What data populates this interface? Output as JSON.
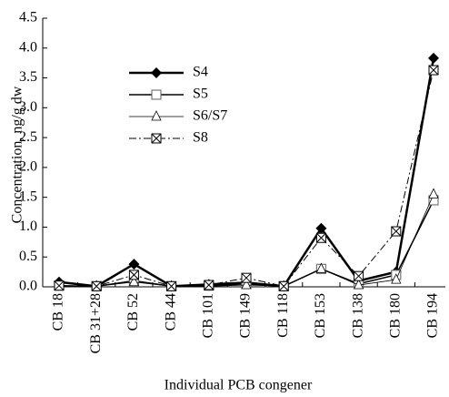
{
  "chart_data": {
    "type": "line",
    "x_label": "Individual PCB congener",
    "y_label": "Concentration, ng/g dw",
    "categories": [
      "CB 18",
      "CB 31+28",
      "CB 52",
      "CB 44",
      "CB 101",
      "CB 149",
      "CB 118",
      "CB 153",
      "CB 138",
      "CB 180",
      "CB 194"
    ],
    "series": [
      {
        "name": "S4",
        "color": "#000000",
        "marker": "diamond",
        "dash": "solid",
        "width": 2.5,
        "values": [
          0.08,
          0.01,
          0.38,
          0.01,
          0.04,
          0.07,
          0.01,
          0.98,
          0.1,
          0.25,
          3.83
        ]
      },
      {
        "name": "S5",
        "color": "#000000",
        "marker": "square",
        "dash": "solid",
        "width": 1.5,
        "values": [
          0.02,
          0.01,
          0.1,
          0.01,
          0.02,
          0.05,
          0.01,
          0.3,
          0.05,
          0.2,
          1.45
        ]
      },
      {
        "name": "S6/S7",
        "color": "#000000",
        "marker": "triangle",
        "dash": "solid",
        "width": 0.8,
        "values": [
          0.01,
          0.01,
          0.08,
          0.01,
          0.01,
          0.03,
          0.01,
          0.3,
          0.03,
          0.12,
          1.55
        ]
      },
      {
        "name": "S8",
        "color": "#000000",
        "marker": "xsquare",
        "dash": "dashdot",
        "width": 1,
        "values": [
          0.02,
          0.01,
          0.2,
          0.01,
          0.03,
          0.15,
          0.01,
          0.82,
          0.18,
          0.93,
          3.63
        ]
      }
    ],
    "ylim": [
      0,
      4.5
    ],
    "yticks": [
      {
        "value": 0,
        "label": "0.0"
      },
      0.5,
      {
        "value": 1,
        "label": "1.0"
      },
      1.5,
      {
        "value": 2,
        "label": "2.0"
      },
      2.5,
      {
        "value": 3,
        "label": "3.0"
      },
      3.5,
      {
        "value": 4,
        "label": "4.0"
      },
      4.5
    ],
    "legend": "upper left"
  }
}
